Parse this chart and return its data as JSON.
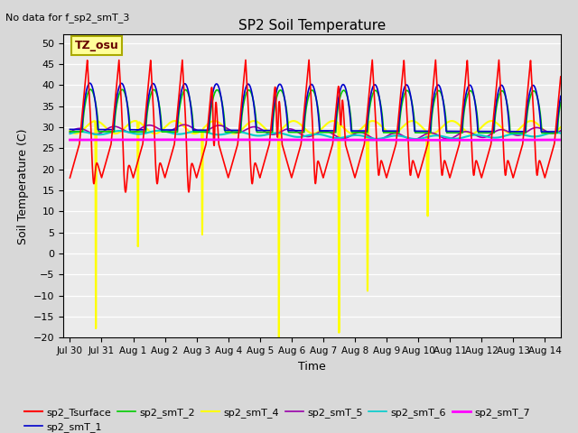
{
  "title": "SP2 Soil Temperature",
  "subtitle": "No data for f_sp2_smT_3",
  "xlabel": "Time",
  "ylabel": "Soil Temperature (C)",
  "ylim": [
    -20,
    52
  ],
  "yticks": [
    -20,
    -15,
    -10,
    -5,
    0,
    5,
    10,
    15,
    20,
    25,
    30,
    35,
    40,
    45,
    50
  ],
  "bg_color": "#d8d8d8",
  "plot_bg_color": "#ebebeb",
  "tz_label": "TZ_osu",
  "tz_box_color": "#ffff99",
  "tz_box_edge": "#aaaa00",
  "series": {
    "sp2_Tsurface": {
      "color": "#ff0000",
      "lw": 1.2
    },
    "sp2_smT_1": {
      "color": "#0000cc",
      "lw": 1.2
    },
    "sp2_smT_2": {
      "color": "#00cc00",
      "lw": 1.2
    },
    "sp2_smT_4": {
      "color": "#ffff00",
      "lw": 1.5
    },
    "sp2_smT_5": {
      "color": "#9900aa",
      "lw": 1.2
    },
    "sp2_smT_6": {
      "color": "#00cccc",
      "lw": 1.5
    },
    "sp2_smT_7": {
      "color": "#ff00ff",
      "lw": 2.0
    }
  },
  "xtick_labels": [
    "Jul 30",
    "Jul 31",
    "Aug 1",
    "Aug 2",
    "Aug 3",
    "Aug 4",
    "Aug 5",
    "Aug 6",
    "Aug 7",
    "Aug 8",
    "Aug 9",
    "Aug 10",
    "Aug 11",
    "Aug 12",
    "Aug 13",
    "Aug 14"
  ],
  "xtick_positions": [
    0,
    1,
    2,
    3,
    4,
    5,
    6,
    7,
    8,
    9,
    10,
    11,
    12,
    13,
    14,
    15
  ]
}
